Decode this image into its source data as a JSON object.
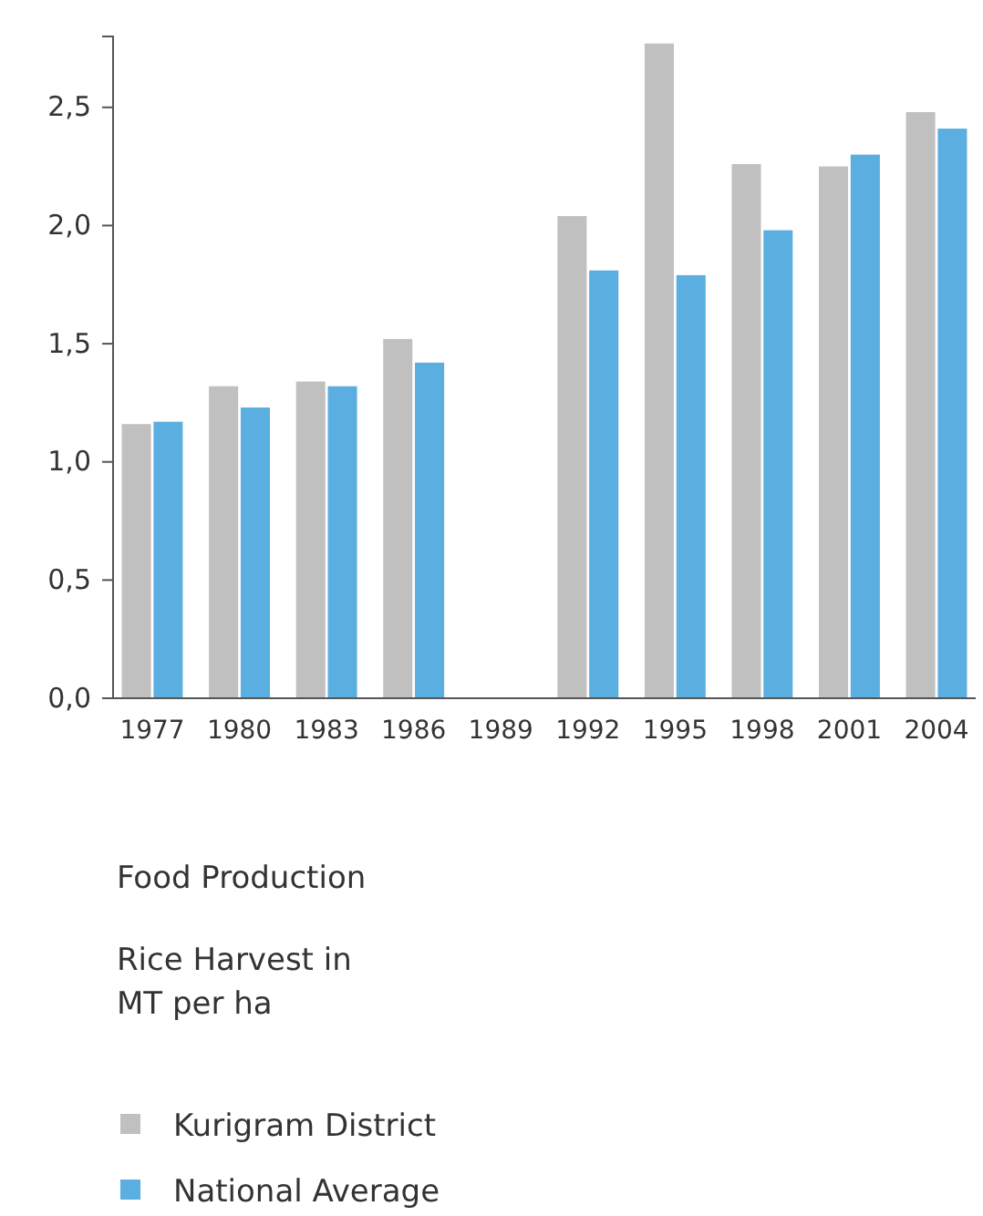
{
  "chart_data": {
    "type": "bar",
    "title": "Food Production",
    "subtitle": "Rice Harvest in MT per ha",
    "categories": [
      "1977",
      "1980",
      "1983",
      "1986",
      "1989",
      "1992",
      "1995",
      "1998",
      "2001",
      "2004"
    ],
    "series": [
      {
        "name": "Kurigram District",
        "color": "#c0c0c0",
        "values": [
          1.16,
          1.32,
          1.34,
          1.52,
          null,
          2.04,
          2.77,
          2.26,
          2.25,
          2.48
        ]
      },
      {
        "name": "National Average",
        "color": "#5aaee0",
        "values": [
          1.17,
          1.23,
          1.32,
          1.42,
          null,
          1.81,
          1.79,
          1.98,
          2.3,
          2.41
        ]
      }
    ],
    "ylim": [
      0,
      2.8
    ],
    "yticks": [
      {
        "value": 0,
        "label": "0,0"
      },
      {
        "value": 0.5,
        "label": "0,5"
      },
      {
        "value": 1,
        "label": "1,0"
      },
      {
        "value": 1.5,
        "label": "1,5"
      },
      {
        "value": 2,
        "label": "2,0"
      },
      {
        "value": 2.5,
        "label": "2,5"
      }
    ],
    "grid": false,
    "legend": "bottom"
  }
}
